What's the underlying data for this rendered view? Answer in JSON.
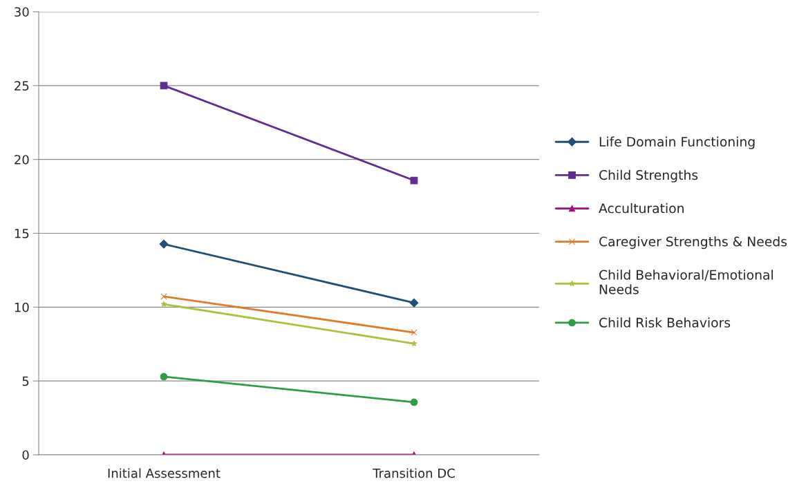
{
  "chart_data": {
    "type": "line",
    "categories": [
      "Initial Assessment",
      "Transition DC"
    ],
    "series": [
      {
        "name": "Life Domain Functioning",
        "color": "#1f4e79",
        "marker": "diamond",
        "values": [
          14.27,
          10.29
        ]
      },
      {
        "name": "Child Strengths",
        "color": "#5f2c91",
        "marker": "square",
        "values": [
          25.0,
          18.58
        ]
      },
      {
        "name": "Acculturation",
        "color": "#a50d7b",
        "marker": "triangle",
        "values": [
          0,
          0
        ]
      },
      {
        "name": "Caregiver Strengths & Needs",
        "color": "#e07b2a",
        "marker": "cross",
        "values": [
          10.72,
          8.28
        ]
      },
      {
        "name": "Child Behavioral/Emotional Needs",
        "color": "#a9c23f",
        "marker": "star",
        "values": [
          10.2,
          7.53
        ]
      },
      {
        "name": "Child Risk Behaviors",
        "color": "#2e9e46",
        "marker": "circle",
        "values": [
          5.29,
          3.56
        ]
      }
    ],
    "ylim": [
      0,
      30
    ],
    "yticks": [
      0,
      5,
      10,
      15,
      20,
      25,
      30
    ],
    "grid": "y",
    "legend": "right",
    "line_style": "solid"
  }
}
